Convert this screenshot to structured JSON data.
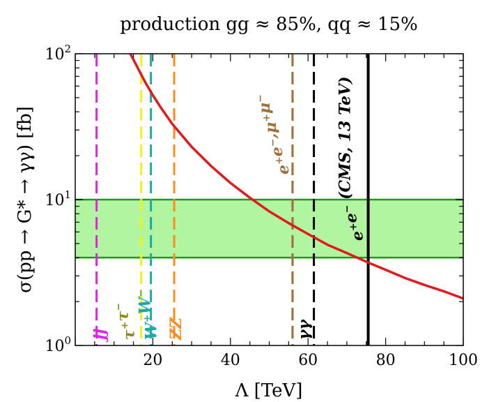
{
  "chart_data": {
    "type": "line",
    "title": "production  gg ≈ 85%, qq ≈ 15%",
    "xlabel": "Λ  [TeV]",
    "ylabel": "σ(pp → G* → γγ)  [fb]",
    "xlim": [
      0,
      100
    ],
    "ylim": [
      1,
      100
    ],
    "yscale": "log",
    "grid": false,
    "x_ticks": [
      "20",
      "40",
      "60",
      "80",
      "100"
    ],
    "y_ticks": [
      {
        "base": "10",
        "exp": "0"
      },
      {
        "base": "10",
        "exp": "1"
      },
      {
        "base": "10",
        "exp": "2"
      }
    ],
    "series": [
      {
        "color": "#e31a1c",
        "x": [
          14.2,
          16,
          18,
          20,
          22,
          25,
          30,
          35,
          40,
          45,
          50,
          55,
          60,
          65,
          70,
          75.5,
          80,
          85,
          90,
          95,
          100
        ],
        "y": [
          100,
          81,
          64,
          52,
          43,
          33,
          23,
          17,
          13,
          10.3,
          8.3,
          6.9,
          5.8,
          4.9,
          4.3,
          3.7,
          3.3,
          2.9,
          2.6,
          2.35,
          2.1
        ]
      }
    ],
    "band": {
      "y_low": 4,
      "y_high": 10,
      "fill": "#b2f5a0",
      "stroke": "#1c9a1c"
    },
    "bounds": [
      {
        "x": 5.5,
        "label_main": "jj",
        "label_sup": "",
        "color": "#e61ee6",
        "style": "dashed"
      },
      {
        "x": 17,
        "label_main": "τ",
        "label_sup": "+",
        "label_main2": "τ",
        "label_sup2": "−",
        "color": "#8a8a1a",
        "style": "dashed",
        "line_color": "#f2f21a"
      },
      {
        "x": 19.5,
        "label_main": "W",
        "label_sup": "+",
        "label_main2": "W",
        "label_sup2": "−",
        "color": "#1aaaaa",
        "style": "dashed"
      },
      {
        "x": 25.5,
        "label_main": "ZZ",
        "label_sup": "",
        "color": "#ff8c1a",
        "style": "dashed"
      },
      {
        "x": 56,
        "label_main": "γγ",
        "label_sup": "",
        "color": "#000000",
        "style": "dashed",
        "line_color": "#a0703a"
      },
      {
        "x": 56,
        "label_main": "e",
        "label_sup": "+",
        "label_main2": "e",
        "label_sup2": "−",
        "label_main3": ",μ",
        "label_sup3": "+",
        "label_main4": "μ",
        "label_sup4": "−",
        "color": "#a0703a",
        "style": "dashed"
      },
      {
        "x": 61.5,
        "color": "#000000",
        "style": "dashed"
      },
      {
        "x": 75.5,
        "label_main": "e",
        "label_sup": "+",
        "label_main2": "e",
        "label_sup2": "−",
        "label_main3": " (CMS, 13 TeV)",
        "color": "#000000",
        "style": "solid"
      }
    ]
  }
}
